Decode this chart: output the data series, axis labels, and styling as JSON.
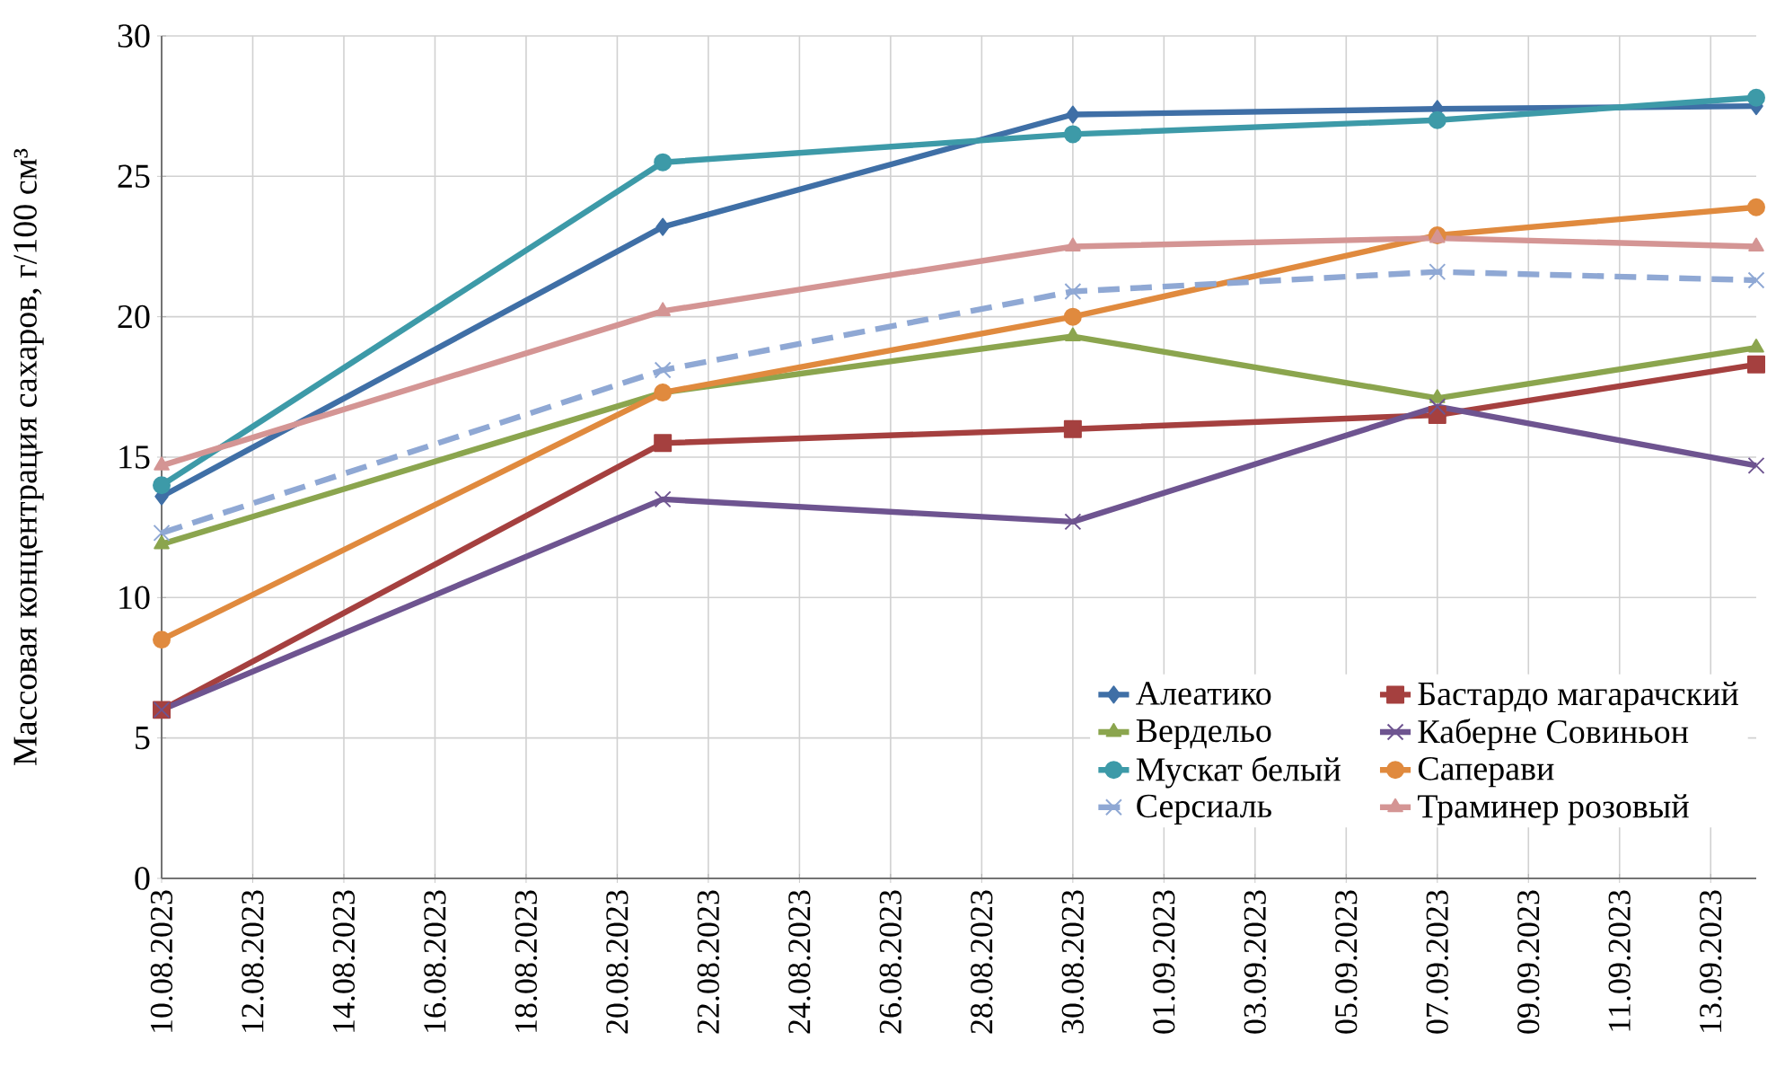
{
  "chart_data": {
    "type": "line",
    "ylabel": "Массовая концентрация сахаров, г/100 см³",
    "x": [
      "2023-08-10",
      "2023-08-21",
      "2023-08-30",
      "2023-09-07",
      "2023-09-14"
    ],
    "xlim": [
      "2023-08-10",
      "2023-09-14"
    ],
    "xticks": [
      {
        "value": "2023-08-10",
        "label": "10.08.2023"
      },
      {
        "value": "2023-08-12",
        "label": "12.08.2023"
      },
      {
        "value": "2023-08-14",
        "label": "14.08.2023"
      },
      {
        "value": "2023-08-16",
        "label": "16.08.2023"
      },
      {
        "value": "2023-08-18",
        "label": "18.08.2023"
      },
      {
        "value": "2023-08-20",
        "label": "20.08.2023"
      },
      {
        "value": "2023-08-22",
        "label": "22.08.2023"
      },
      {
        "value": "2023-08-24",
        "label": "24.08.2023"
      },
      {
        "value": "2023-08-26",
        "label": "26.08.2023"
      },
      {
        "value": "2023-08-28",
        "label": "28.08.2023"
      },
      {
        "value": "2023-08-30",
        "label": "30.08.2023"
      },
      {
        "value": "2023-09-01",
        "label": "01.09.2023"
      },
      {
        "value": "2023-09-03",
        "label": "03.09.2023"
      },
      {
        "value": "2023-09-05",
        "label": "05.09.2023"
      },
      {
        "value": "2023-09-07",
        "label": "07.09.2023"
      },
      {
        "value": "2023-09-09",
        "label": "09.09.2023"
      },
      {
        "value": "2023-09-11",
        "label": "11.09.2023"
      },
      {
        "value": "2023-09-13",
        "label": "13.09.2023"
      }
    ],
    "ylim": [
      0,
      30
    ],
    "yticks": [
      0,
      5,
      10,
      15,
      20,
      25,
      30
    ],
    "grid": true,
    "legend": "bottom right",
    "series": [
      {
        "name": "Алеатико",
        "color": "#3f6fa6",
        "marker": "diamond",
        "values": [
          13.6,
          23.2,
          27.2,
          27.4,
          27.5
        ]
      },
      {
        "name": "Бастардо магарачский",
        "color": "#a5403f",
        "marker": "square",
        "values": [
          6.0,
          15.5,
          16.0,
          16.5,
          18.3
        ]
      },
      {
        "name": "Вердельо",
        "color": "#8ba54e",
        "marker": "triangle",
        "values": [
          11.9,
          17.3,
          19.3,
          17.1,
          18.9
        ]
      },
      {
        "name": "Каберне Совиньон",
        "color": "#6e5490",
        "marker": "cross",
        "values": [
          6.0,
          13.5,
          12.7,
          16.8,
          14.7
        ]
      },
      {
        "name": "Мускат белый",
        "color": "#3d9aa8",
        "marker": "circle",
        "values": [
          14.0,
          25.5,
          26.5,
          27.0,
          27.8
        ]
      },
      {
        "name": "Саперави",
        "color": "#e08a3e",
        "marker": "circle",
        "values": [
          8.5,
          17.3,
          20.0,
          22.9,
          23.9
        ]
      },
      {
        "name": "Серсиаль",
        "color": "#8fa8d4",
        "marker": "cross",
        "line_style": "dashed",
        "values": [
          12.3,
          18.1,
          20.9,
          21.6,
          21.3
        ]
      },
      {
        "name": "Траминер розовый",
        "color": "#d49594",
        "marker": "triangle",
        "values": [
          14.7,
          20.2,
          22.5,
          22.8,
          22.5
        ]
      }
    ]
  }
}
